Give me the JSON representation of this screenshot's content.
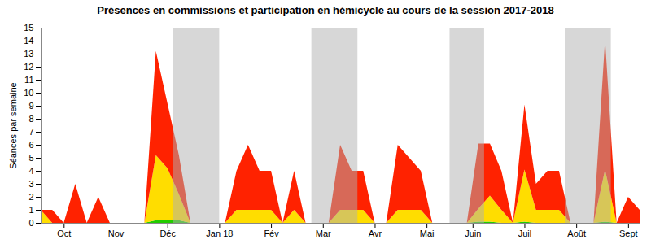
{
  "chart_data": {
    "type": "area",
    "stacked": true,
    "title": "Présences en commissions et participation en hémicycle au cours de la session 2017-2018",
    "ylabel": "Séances par semaine",
    "x": [
      0,
      1,
      2,
      3,
      4,
      5,
      6,
      7,
      8,
      9,
      10,
      11,
      12,
      13,
      14,
      15,
      16,
      17,
      18,
      19,
      20,
      21,
      22,
      23,
      24,
      25,
      26,
      27,
      28,
      29,
      30,
      31,
      32,
      33,
      34,
      35,
      36,
      37,
      38,
      39,
      40,
      41,
      42,
      43,
      44,
      45,
      46,
      47,
      48,
      49,
      50,
      51,
      52
    ],
    "series": [
      {
        "color": "#22cc00",
        "values": [
          0,
          0,
          0,
          0,
          0,
          0,
          0,
          0,
          0,
          0,
          0.2,
          0.2,
          0.2,
          0,
          0,
          0,
          0,
          0,
          0,
          0,
          0,
          0,
          0,
          0,
          0,
          0,
          0,
          0,
          0,
          0,
          0,
          0,
          0,
          0,
          0,
          0,
          0,
          0,
          0.1,
          0.1,
          0,
          0,
          0.1,
          0,
          0,
          0,
          0,
          0,
          0,
          0.1,
          0,
          0,
          0
        ]
      },
      {
        "color": "#ffdd00",
        "values": [
          1,
          0,
          0,
          0,
          0,
          0,
          0,
          0,
          0,
          0,
          5,
          4,
          2,
          0,
          0,
          0,
          0,
          1,
          1,
          1,
          1,
          0,
          1,
          0,
          0,
          0,
          1,
          1,
          1,
          0,
          0,
          1,
          1,
          1,
          0,
          0,
          0,
          0,
          1,
          2,
          1,
          0,
          4,
          1,
          1,
          1,
          0,
          0,
          0,
          4,
          0,
          0,
          0
        ]
      },
      {
        "color": "#ff2200",
        "values": [
          0,
          1,
          0,
          3,
          0,
          2,
          0,
          0,
          0,
          0,
          8,
          5,
          3,
          0,
          0,
          0,
          0,
          3,
          5,
          3,
          3,
          0,
          3,
          0,
          0,
          0,
          5,
          3,
          3,
          0,
          0,
          5,
          4,
          3,
          0,
          0,
          0,
          0,
          5,
          4,
          3,
          0,
          5,
          2,
          3,
          3,
          0,
          0,
          0,
          10,
          0,
          2,
          1
        ]
      }
    ],
    "xlim": [
      0,
      52
    ],
    "xticks": [
      {
        "value": 2,
        "label": "Oct"
      },
      {
        "value": 6.5,
        "label": "Nov"
      },
      {
        "value": 11,
        "label": "Déc"
      },
      {
        "value": 15.5,
        "label": "Jan 18"
      },
      {
        "value": 20,
        "label": "Fév"
      },
      {
        "value": 24.5,
        "label": "Mar"
      },
      {
        "value": 29,
        "label": "Avr"
      },
      {
        "value": 33.5,
        "label": "Mai"
      },
      {
        "value": 37.5,
        "label": "Juin"
      },
      {
        "value": 42,
        "label": "Juil"
      },
      {
        "value": 46.5,
        "label": "Août"
      },
      {
        "value": 51,
        "label": "Sept"
      }
    ],
    "ylim": [
      0,
      15
    ],
    "yticks": [
      0,
      1,
      2,
      3,
      4,
      5,
      6,
      7,
      8,
      9,
      10,
      11,
      12,
      13,
      14,
      15
    ],
    "shaded_ranges": {
      "color": "#b0b0b0",
      "ranges": [
        [
          11.5,
          15.5
        ],
        [
          23.5,
          27.5
        ],
        [
          35.5,
          38.5
        ],
        [
          45.5,
          49.5
        ]
      ]
    },
    "reference_line": {
      "y": 14,
      "color": "black",
      "line_style": "dotted"
    }
  }
}
